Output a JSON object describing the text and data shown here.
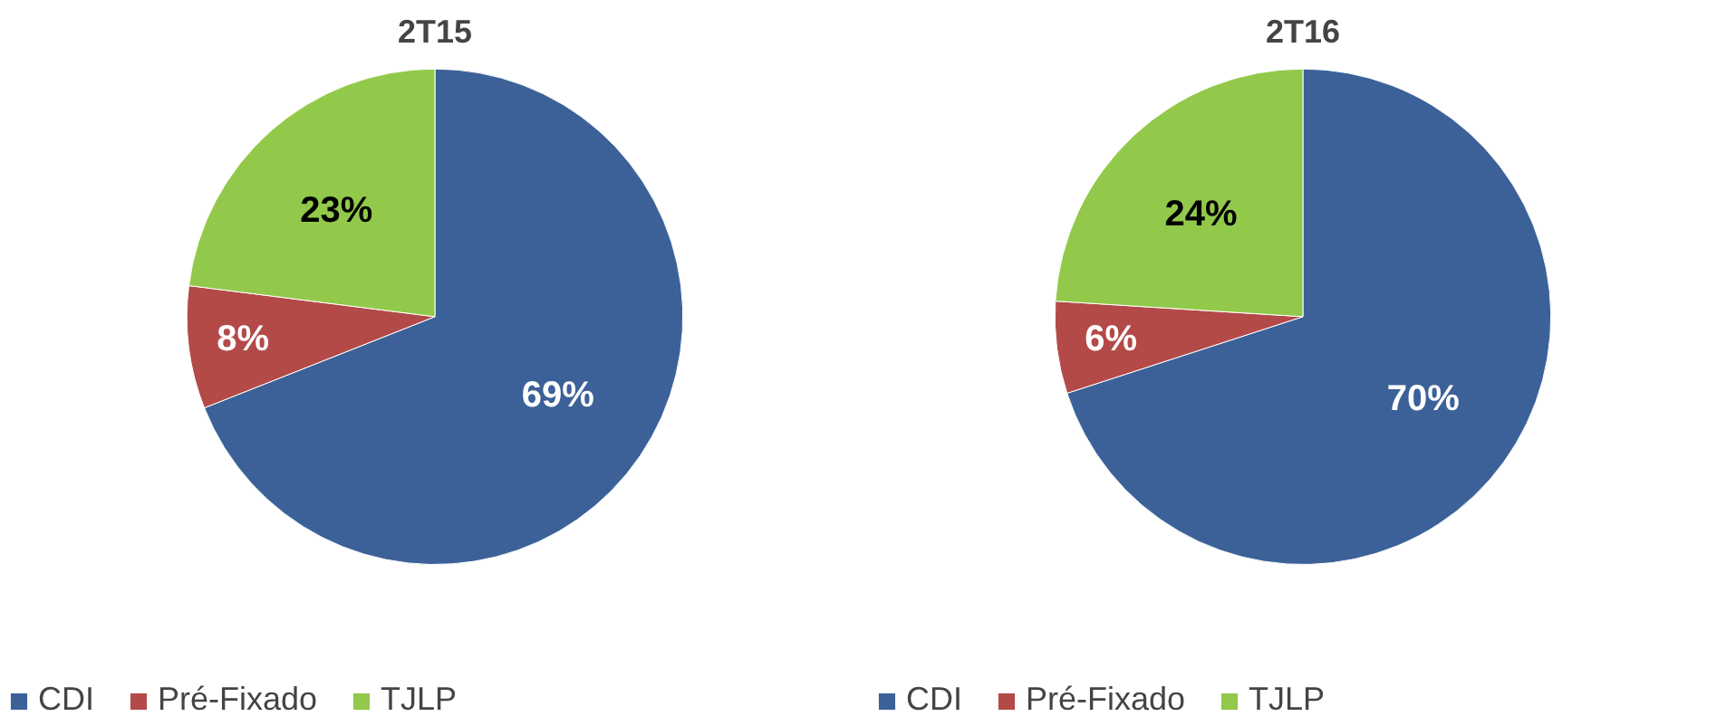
{
  "chart_data": [
    {
      "type": "pie",
      "title": "2T15",
      "categories": [
        "CDI",
        "Pré-Fixado",
        "TJLP"
      ],
      "values": [
        69,
        8,
        23
      ],
      "colors": [
        "#3b6198",
        "#b34a48",
        "#93c94a"
      ],
      "value_labels": [
        "69%",
        "8%",
        "23%"
      ],
      "legend": "bottom"
    },
    {
      "type": "pie",
      "title": "2T16",
      "categories": [
        "CDI",
        "Pré-Fixado",
        "TJLP"
      ],
      "values": [
        70,
        6,
        24
      ],
      "colors": [
        "#3b6198",
        "#b34a48",
        "#93c94a"
      ],
      "value_labels": [
        "70%",
        "6%",
        "24%"
      ],
      "legend": "bottom"
    }
  ]
}
